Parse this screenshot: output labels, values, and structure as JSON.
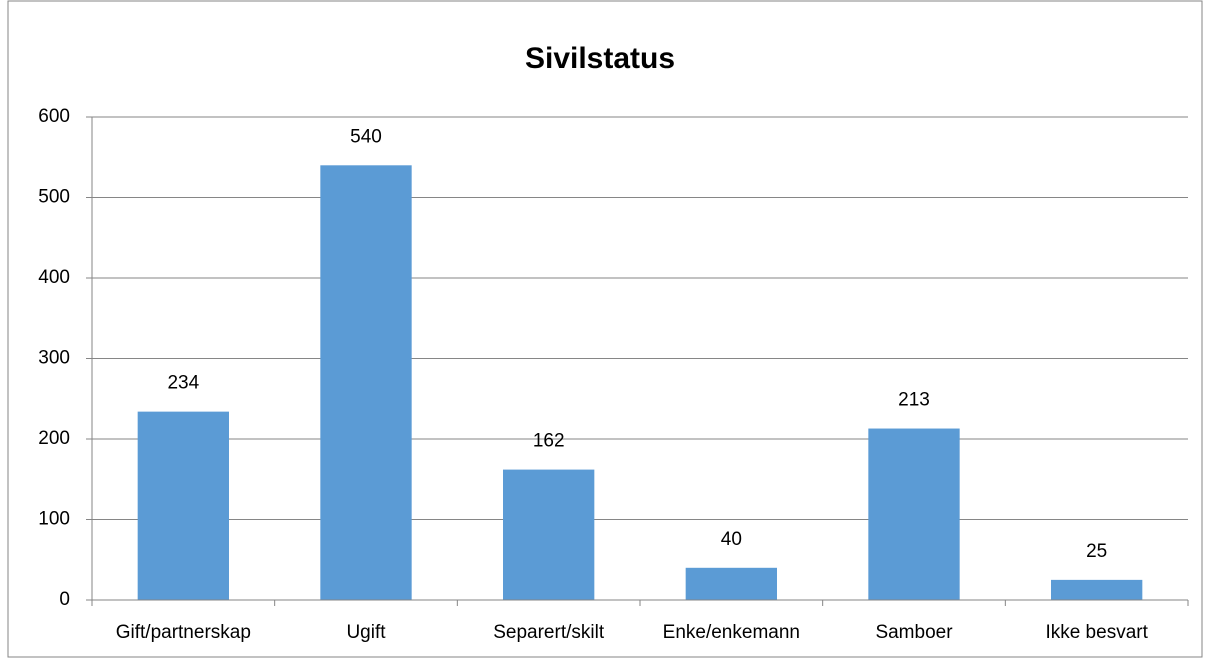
{
  "chart_data": {
    "type": "bar",
    "title": "Sivilstatus",
    "categories": [
      "Gift/partnerskap",
      "Ugift",
      "Separert/skilt",
      "Enke/enkemann",
      "Samboer",
      "Ikke besvart"
    ],
    "values": [
      234,
      540,
      162,
      40,
      213,
      25
    ],
    "color": "#5b9bd5",
    "ylim": [
      0,
      600
    ],
    "yticks": [
      0,
      100,
      200,
      300,
      400,
      500,
      600
    ],
    "grid": true,
    "data_labels": true
  }
}
